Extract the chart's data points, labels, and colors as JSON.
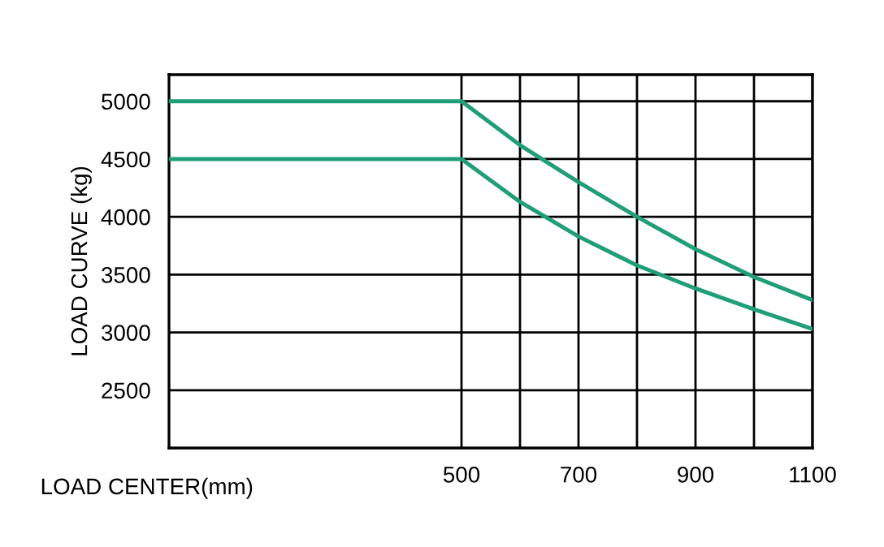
{
  "chart_data": {
    "type": "line",
    "xlabel": "LOAD CENTER(mm)",
    "ylabel": "LOAD CURVE (kg)",
    "x": [
      0,
      500,
      600,
      700,
      800,
      900,
      1000,
      1100
    ],
    "series": [
      {
        "color": "#1f9e78",
        "values": [
          5000,
          5000,
          4620,
          4300,
          4000,
          3720,
          3480,
          3280
        ]
      },
      {
        "color": "#1f9e78",
        "values": [
          4500,
          4500,
          4130,
          3830,
          3580,
          3380,
          3200,
          3030
        ]
      }
    ],
    "xlim": [
      0,
      1100
    ],
    "ylim": [
      2000,
      5230
    ],
    "xticks": [
      500,
      {
        "value": 600,
        "label": null
      },
      700,
      {
        "value": 800,
        "label": null
      },
      900,
      {
        "value": 1000,
        "label": null
      },
      1100
    ],
    "yticks": [
      2500,
      3000,
      3500,
      4000,
      4500,
      5000
    ],
    "grid": true,
    "marker": "none",
    "line_style": "solid"
  }
}
